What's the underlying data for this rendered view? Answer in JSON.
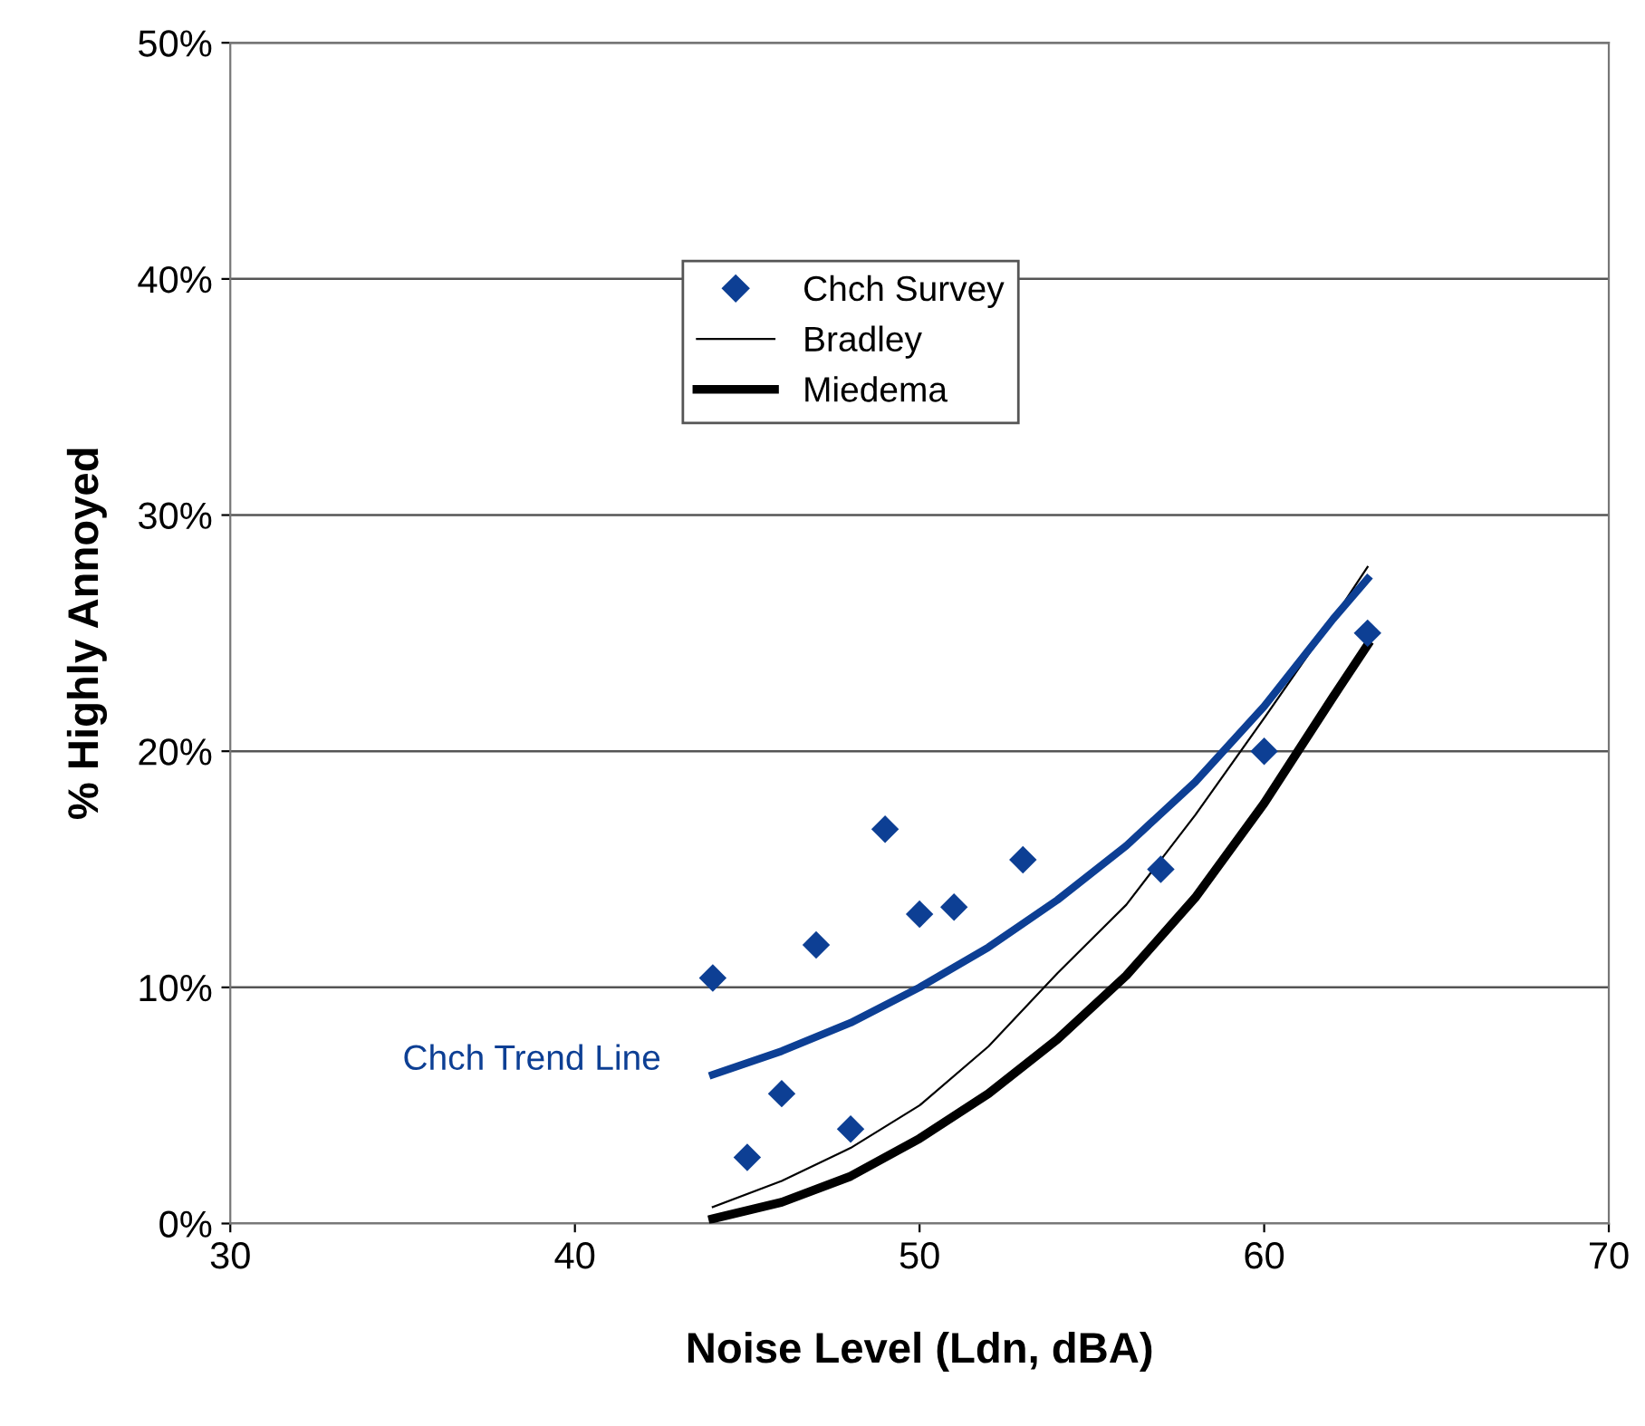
{
  "chart_data": {
    "type": "scatter",
    "xlabel": "Noise Level (Ldn, dBA)",
    "ylabel": "% Highly Annoyed",
    "xlim": [
      30,
      70
    ],
    "xticks": [
      30,
      40,
      50,
      60,
      70
    ],
    "ylim": [
      0,
      50
    ],
    "yticks": [
      {
        "value": 0,
        "label": "0%"
      },
      {
        "value": 10,
        "label": "10%"
      },
      {
        "value": 20,
        "label": "20%"
      },
      {
        "value": 30,
        "label": "30%"
      },
      {
        "value": 40,
        "label": "40%"
      },
      {
        "value": 50,
        "label": "50%"
      }
    ],
    "grid": "y",
    "legend": "top",
    "series": [
      {
        "name": "Chch Survey",
        "marker": "diamond",
        "color": "#0d3f94",
        "x": [
          44,
          45,
          46,
          47,
          48,
          49,
          50,
          51,
          53,
          57,
          60,
          63
        ],
        "values": [
          10.4,
          2.8,
          5.5,
          11.8,
          4.0,
          16.7,
          13.1,
          13.4,
          15.4,
          15.0,
          20.0,
          25.0
        ]
      },
      {
        "name": "Bradley",
        "type": "line",
        "line_style": "solid",
        "color": "#000000",
        "x": [
          44,
          46,
          48,
          50,
          52,
          54,
          56,
          58,
          60,
          62,
          63
        ],
        "values": [
          0.7,
          1.8,
          3.2,
          5.0,
          7.5,
          10.6,
          13.5,
          17.3,
          21.4,
          25.6,
          27.8
        ]
      },
      {
        "name": "Miedema",
        "type": "line",
        "line_style": "solid",
        "color": "#000000",
        "x": [
          44,
          46,
          48,
          50,
          52,
          54,
          56,
          58,
          60,
          62,
          63
        ],
        "values": [
          0.2,
          0.9,
          2.0,
          3.6,
          5.5,
          7.8,
          10.5,
          13.8,
          17.8,
          22.3,
          24.5
        ]
      },
      {
        "name": "Chch Trend Line",
        "type": "line",
        "line_style": "solid",
        "color": "#0d3f94",
        "x": [
          44,
          46,
          48,
          50,
          52,
          54,
          56,
          58,
          60,
          62,
          63
        ],
        "values": [
          6.3,
          7.3,
          8.5,
          10.0,
          11.7,
          13.7,
          16.0,
          18.7,
          21.9,
          25.6,
          27.3
        ]
      }
    ]
  }
}
